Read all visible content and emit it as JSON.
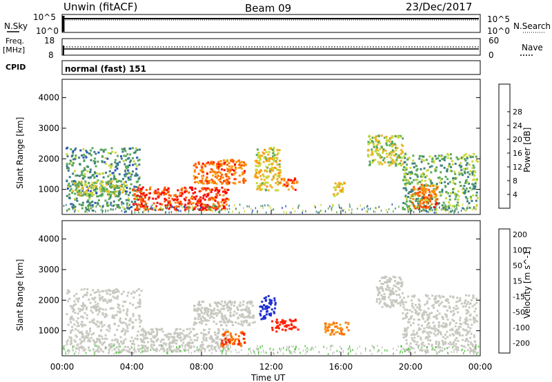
{
  "header": {
    "station": "Unwin (fitACF)",
    "beam": "Beam 09",
    "date": "23/Dec/2017"
  },
  "left_labels": {
    "nsky": "N.Sky",
    "freq_line1": "Freq.",
    "freq_line2": "[MHz]",
    "cpid": "CPID"
  },
  "right_labels": {
    "nsearch": "N.Search",
    "nave": "Nave"
  },
  "noise_panel": {
    "left_ticks": [
      "10^5",
      "10^0"
    ],
    "right_ticks": [
      "10^5",
      "10^0"
    ]
  },
  "freq_panel": {
    "left_ticks": [
      "18",
      "8"
    ],
    "right_ticks": [
      "60",
      "0"
    ]
  },
  "cpid_text": "normal (fast) 151",
  "power_colorbar": {
    "label": "Power [dB]",
    "ticks": [
      "4",
      "8",
      "12",
      "16",
      "20",
      "24",
      "28"
    ],
    "colors": [
      "#1a1aff",
      "#2b4fc0",
      "#3f7f7f",
      "#58a858",
      "#c7d83a",
      "#f0b020",
      "#ff8a00",
      "#ff5a00",
      "#ff0000"
    ]
  },
  "velocity_colorbar": {
    "label": "Velocity [m s^-1]",
    "ticks": [
      "200",
      "100",
      "50",
      "15",
      "-15",
      "-50",
      "-100",
      "-200"
    ],
    "colors": [
      "#2030d0",
      "#3060a8",
      "#3c8a3c",
      "#5ac84a",
      "#c8c8c0",
      "#f0a020",
      "#ff7000",
      "#ff2000"
    ]
  },
  "x_axis": {
    "label": "Time UT",
    "ticks": [
      "00:00",
      "04:00",
      "08:00",
      "12:00",
      "16:00",
      "20:00",
      "00:00"
    ]
  },
  "y_axis": {
    "label": "Slant Range [km]",
    "ticks": [
      "1000",
      "2000",
      "3000",
      "4000"
    ]
  },
  "chart_data": [
    {
      "type": "heatmap",
      "title": "Power",
      "xlabel": "Time UT",
      "ylabel": "Slant Range [km]",
      "xlim_hours": [
        0,
        24
      ],
      "ylim_km": [
        180,
        4600
      ],
      "colorbar_label": "Power [dB]",
      "colorbar_range": [
        0,
        32
      ],
      "regions": [
        {
          "t": [
            0.2,
            4.5
          ],
          "r": [
            300,
            2400
          ],
          "p": 10
        },
        {
          "t": [
            0.5,
            3.5
          ],
          "r": [
            800,
            1300
          ],
          "p": 15
        },
        {
          "t": [
            4.0,
            9.5
          ],
          "r": [
            350,
            1100
          ],
          "p": 30
        },
        {
          "t": [
            7.5,
            10.5
          ],
          "r": [
            1200,
            2000
          ],
          "p": 26
        },
        {
          "t": [
            11.0,
            12.5
          ],
          "r": [
            1000,
            2400
          ],
          "p": 18
        },
        {
          "t": [
            12.5,
            13.5
          ],
          "r": [
            1000,
            1400
          ],
          "p": 26
        },
        {
          "t": [
            15.5,
            16.2
          ],
          "r": [
            800,
            1300
          ],
          "p": 20
        },
        {
          "t": [
            17.5,
            19.5
          ],
          "r": [
            1800,
            2800
          ],
          "p": 16
        },
        {
          "t": [
            19.5,
            23.8
          ],
          "r": [
            300,
            2200
          ],
          "p": 12
        },
        {
          "t": [
            20.0,
            21.5
          ],
          "r": [
            400,
            1200
          ],
          "p": 26
        }
      ]
    },
    {
      "type": "heatmap",
      "title": "Velocity",
      "xlabel": "Time UT",
      "ylabel": "Slant Range [km]",
      "xlim_hours": [
        0,
        24
      ],
      "ylim_km": [
        180,
        4600
      ],
      "colorbar_label": "Velocity [m s^-1]",
      "colorbar_range": [
        -200,
        200
      ],
      "regions": [
        {
          "t": [
            0.2,
            4.5
          ],
          "r": [
            300,
            2400
          ],
          "v": 0
        },
        {
          "t": [
            4.5,
            9.5
          ],
          "r": [
            350,
            1100
          ],
          "v": 0
        },
        {
          "t": [
            7.5,
            11.0
          ],
          "r": [
            1200,
            2000
          ],
          "v": 0
        },
        {
          "t": [
            9.0,
            10.5
          ],
          "r": [
            500,
            1000
          ],
          "v": -90
        },
        {
          "t": [
            11.3,
            12.2
          ],
          "r": [
            1400,
            2200
          ],
          "v": 200
        },
        {
          "t": [
            12.0,
            13.5
          ],
          "r": [
            1000,
            1400
          ],
          "v": -150
        },
        {
          "t": [
            15.0,
            16.5
          ],
          "r": [
            900,
            1300
          ],
          "v": -60
        },
        {
          "t": [
            18.0,
            19.5
          ],
          "r": [
            1800,
            2800
          ],
          "v": 0
        },
        {
          "t": [
            19.5,
            23.8
          ],
          "r": [
            300,
            2200
          ],
          "v": 0
        }
      ]
    }
  ]
}
